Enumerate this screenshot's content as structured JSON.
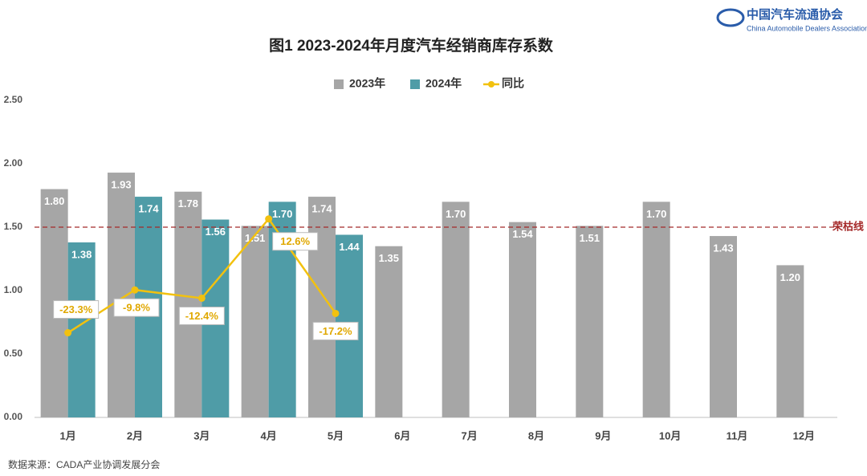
{
  "header": {
    "org_name": "中国汽车流通协会",
    "org_name_en": "China Automobile Dealers Association"
  },
  "chart_data": {
    "type": "bar",
    "title": "图1  2023-2024年月度汽车经销商库存系数",
    "categories": [
      "1月",
      "2月",
      "3月",
      "4月",
      "5月",
      "6月",
      "7月",
      "8月",
      "9月",
      "10月",
      "11月",
      "12月"
    ],
    "series": [
      {
        "name": "2023年",
        "color": "#a6a6a6",
        "values": [
          1.8,
          1.93,
          1.78,
          1.51,
          1.74,
          1.35,
          1.7,
          1.54,
          1.51,
          1.7,
          1.43,
          1.2
        ],
        "value_labels": [
          "1.80",
          "1.93",
          "1.78",
          "1.51",
          "1.74",
          "1.35",
          "1.70",
          "1.54",
          "1.51",
          "1.70",
          "1.43",
          "1.20"
        ]
      },
      {
        "name": "2024年",
        "color": "#4f9ca7",
        "values": [
          1.38,
          1.74,
          1.56,
          1.7,
          1.44,
          null,
          null,
          null,
          null,
          null,
          null,
          null
        ],
        "value_labels": [
          "1.38",
          "1.74",
          "1.56",
          "1.70",
          "1.44",
          null,
          null,
          null,
          null,
          null,
          null,
          null
        ]
      },
      {
        "name": "同比",
        "type": "line",
        "axis": "y2",
        "color": "#f2c10f",
        "values": [
          -23.3,
          -9.8,
          -12.4,
          12.6,
          -17.2,
          null,
          null,
          null,
          null,
          null,
          null,
          null
        ],
        "value_labels": [
          "-23.3%",
          "-9.8%",
          "-12.4%",
          "12.6%",
          "-17.2%",
          null,
          null,
          null,
          null,
          null,
          null,
          null
        ]
      }
    ],
    "ylim": [
      0,
      2.5
    ],
    "yticks": [
      {
        "value": 0,
        "label": "0.00"
      },
      {
        "value": 0.5,
        "label": "0.50"
      },
      {
        "value": 1,
        "label": "1.00"
      },
      {
        "value": 1.5,
        "label": "1.50"
      },
      {
        "value": 2,
        "label": "2.00"
      },
      {
        "value": 2.5,
        "label": "2.50"
      }
    ],
    "y2lim": [
      -50,
      50
    ],
    "reference_line": {
      "value": 1.5,
      "label": "荣枯线",
      "color": "#a52a2a"
    },
    "source": "数据来源：CADA产业协调发展分会"
  }
}
